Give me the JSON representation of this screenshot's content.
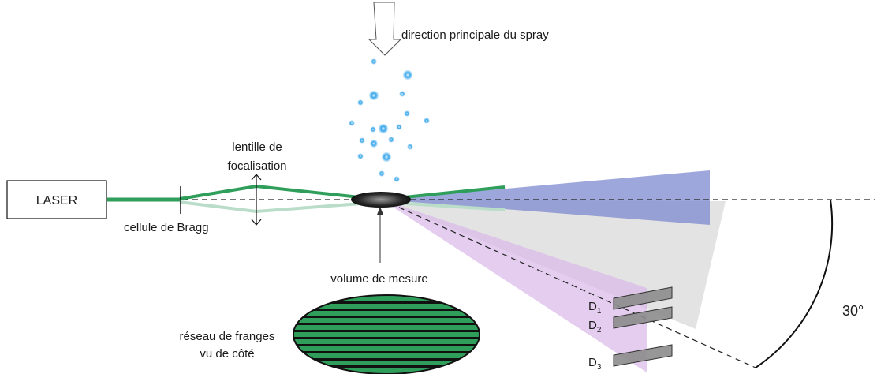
{
  "labels": {
    "laser": "LASER",
    "spray_direction": "direction principale du spray",
    "lens_line1": "lentille de",
    "lens_line2": "focalisation",
    "bragg_cell": "cellule de Bragg",
    "measurement_volume": "volume de mesure",
    "fringe_line1": "réseau de franges",
    "fringe_line2": "vu de côté",
    "angle": "30°"
  },
  "detectors": [
    {
      "letter": "D",
      "subscript": "1"
    },
    {
      "letter": "D",
      "subscript": "2"
    },
    {
      "letter": "D",
      "subscript": "3"
    }
  ],
  "colors": {
    "beam_green": "#2e9e5a",
    "beam_green_faded": "#b9ddc8",
    "scatter_blue": "#7d89cf",
    "scatter_gray": "#d9d9d9",
    "scatter_purple": "#d9b8e8",
    "detector_gray": "#8c8c8c",
    "droplet_blue": "#1e9be6",
    "fringe_green": "#2e9e5a"
  }
}
